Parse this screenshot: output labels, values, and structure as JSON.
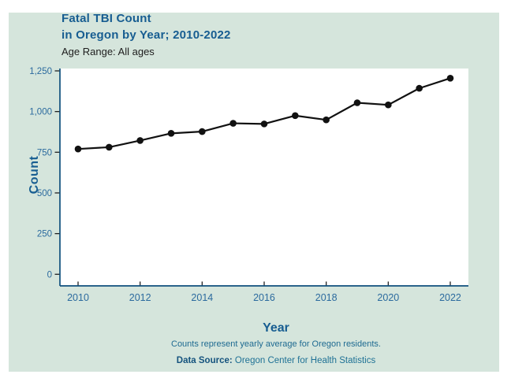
{
  "chart_data": {
    "type": "line",
    "title": "Fatal TBI Count",
    "title_line2": "in Oregon by Year; 2010-2022",
    "subtitle": "Age Range: All ages",
    "xlabel": "Year",
    "ylabel": "Count",
    "categories": [
      2010,
      2011,
      2012,
      2013,
      2014,
      2015,
      2016,
      2017,
      2018,
      2019,
      2020,
      2021,
      2022
    ],
    "values": [
      770,
      781,
      822,
      866,
      877,
      928,
      924,
      975,
      949,
      1054,
      1041,
      1143,
      1205
    ],
    "ylim": [
      0,
      1250
    ],
    "y_ticks": [
      0,
      250,
      500,
      750,
      1000,
      1250
    ],
    "y_tick_labels": [
      "0",
      "250",
      "500",
      "750",
      "1,000",
      "1,250"
    ],
    "x_ticks": [
      2010,
      2012,
      2014,
      2016,
      2018,
      2020,
      2022
    ],
    "x_tick_labels": [
      "2010",
      "2012",
      "2014",
      "2016",
      "2018",
      "2020",
      "2022"
    ],
    "grid": false,
    "legend": "none",
    "marker": "filled-circle",
    "footnote": "Counts represent yearly average for Oregon residents.",
    "source_label": "Data Source:",
    "source_text": " Oregon Center for Health Statistics",
    "colors": {
      "panel_bg": "#d5e5dc",
      "plot_bg": "#ffffff",
      "axis": "#0f4f7d",
      "tick": "#222222",
      "series": "#111111",
      "title_text": "#175d91",
      "tick_text": "#2b6a9e",
      "subtitle_text": "#1d1d1d",
      "footnote_text": "#1e6a91"
    }
  }
}
